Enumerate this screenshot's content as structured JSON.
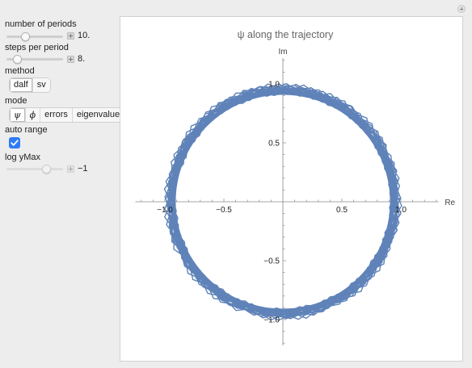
{
  "controls": {
    "periods": {
      "label": "number of periods",
      "value": "10.",
      "position": 0.3
    },
    "steps": {
      "label": "steps per period",
      "value": "8.",
      "position": 0.14
    },
    "method": {
      "label": "method",
      "options": [
        "dalf",
        "sv"
      ],
      "selected": 0
    },
    "mode": {
      "label": "mode",
      "options": [
        "ψ",
        "ϕ",
        "errors",
        "eigenvalues"
      ],
      "selected": 0
    },
    "auto_range": {
      "label": "auto range",
      "checked": true,
      "accent": "#2f7bf6"
    },
    "log_ymax": {
      "label": "log yMax",
      "value": "−1",
      "position": 0.75
    }
  },
  "chart_data": {
    "type": "line",
    "title": "ψ along the trajectory",
    "xlabel": "Re",
    "ylabel": "Im",
    "xlim": [
      -1.25,
      1.32
    ],
    "ylim": [
      -1.22,
      1.22
    ],
    "xticks": [
      -1.0,
      -0.5,
      0.5,
      1.0
    ],
    "xtick_labels": [
      "−1.0",
      "−0.5",
      "0.5",
      "1.0"
    ],
    "yticks": [
      -1.0,
      -0.5,
      0.5,
      1.0
    ],
    "ytick_labels": [
      "−1.0",
      "−0.5",
      "0.5",
      "1.0"
    ],
    "series_color": "#5f83b9",
    "description_values": {
      "steps_per_period": 8,
      "periods": 10,
      "radius_min": 0.9,
      "radius_max": 1.01
    }
  }
}
